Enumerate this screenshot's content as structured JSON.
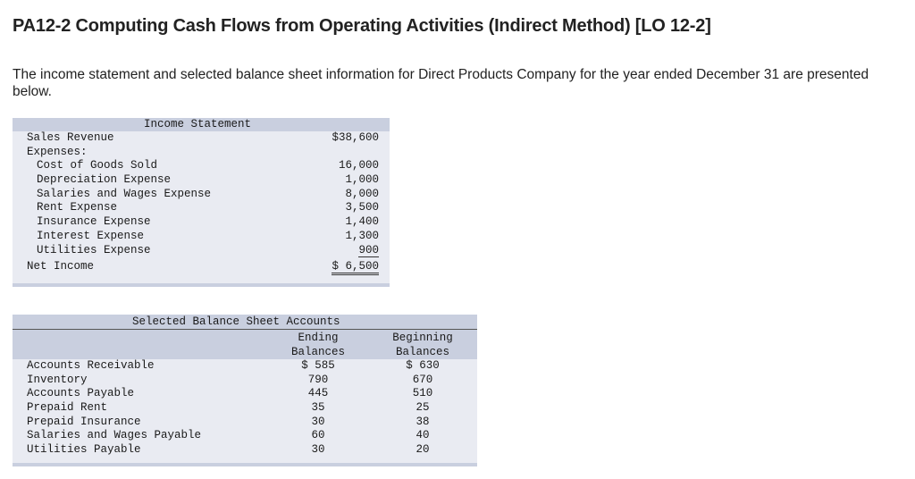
{
  "title": "PA12-2 Computing Cash Flows from Operating Activities (Indirect Method) [LO 12-2]",
  "intro": "The income statement and selected balance sheet information for Direct Products Company for the year ended December 31 are presented below.",
  "income_statement": {
    "header": "Income Statement",
    "sales_label": "Sales Revenue",
    "sales_value": "$38,600",
    "expenses_label": "Expenses:",
    "expenses": [
      {
        "label": "Cost of Goods Sold",
        "value": "16,000"
      },
      {
        "label": "Depreciation Expense",
        "value": "1,000"
      },
      {
        "label": "Salaries and Wages Expense",
        "value": "8,000"
      },
      {
        "label": "Rent Expense",
        "value": "3,500"
      },
      {
        "label": "Insurance Expense",
        "value": "1,400"
      },
      {
        "label": "Interest Expense",
        "value": "1,300"
      },
      {
        "label": "Utilities Expense",
        "value": "900"
      }
    ],
    "net_income_label": "Net Income",
    "net_income_value": "$ 6,500"
  },
  "balance_sheet": {
    "header": "Selected Balance Sheet Accounts",
    "col_ending_1": "Ending",
    "col_ending_2": "Balances",
    "col_beginning_1": "Beginning",
    "col_beginning_2": "Balances",
    "rows": [
      {
        "label": "Accounts Receivable",
        "ending": "$ 585",
        "beginning": "$ 630"
      },
      {
        "label": "Inventory",
        "ending": "790",
        "beginning": "670"
      },
      {
        "label": "Accounts Payable",
        "ending": "445",
        "beginning": "510"
      },
      {
        "label": "Prepaid Rent",
        "ending": "35",
        "beginning": "25"
      },
      {
        "label": "Prepaid Insurance",
        "ending": "30",
        "beginning": "38"
      },
      {
        "label": "Salaries and Wages Payable",
        "ending": "60",
        "beginning": "40"
      },
      {
        "label": "Utilities Payable",
        "ending": "30",
        "beginning": "20"
      }
    ]
  }
}
